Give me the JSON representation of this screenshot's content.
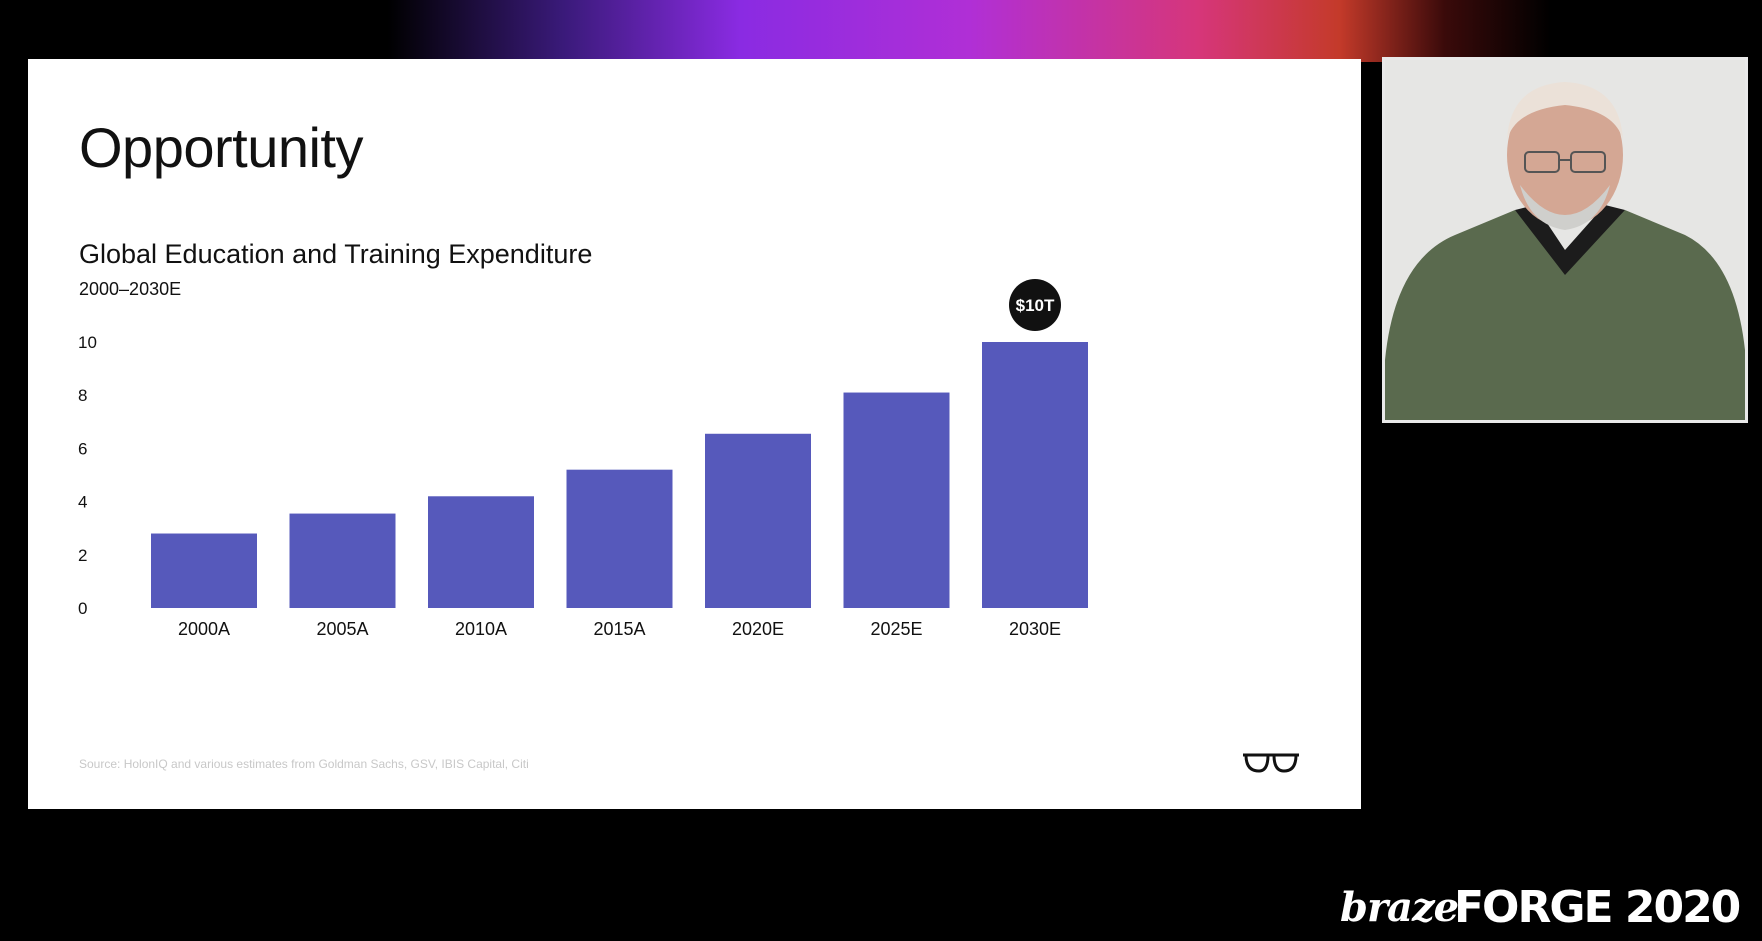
{
  "slide": {
    "title": "Opportunity",
    "source": "Source: HolonIQ and various estimates from Goldman Sachs, GSV, IBIS Capital, Citi"
  },
  "branding": {
    "braze": "braze",
    "event": "FORGE 2020"
  },
  "colors": {
    "bar": "#5659bb",
    "callout_bg": "#111111",
    "callout_text": "#ffffff",
    "slide_bg": "#ffffff",
    "stage_bg": "#000000"
  },
  "icons": {
    "slide_logo": "glasses-icon"
  },
  "chart_data": {
    "type": "bar",
    "title": "Global Education and Training Expenditure",
    "subtitle": "2000–2030E",
    "xlabel": "",
    "ylabel": "",
    "categories": [
      "2000A",
      "2005A",
      "2010A",
      "2015A",
      "2020E",
      "2025E",
      "2030E"
    ],
    "values": [
      2.8,
      3.55,
      4.2,
      5.2,
      6.55,
      8.1,
      10.0
    ],
    "ylim": [
      0,
      10
    ],
    "yticks": [
      0,
      2,
      4,
      6,
      8,
      10
    ],
    "grid": false,
    "legend": "none",
    "callout": {
      "category": "2030E",
      "label": "$10T"
    }
  }
}
